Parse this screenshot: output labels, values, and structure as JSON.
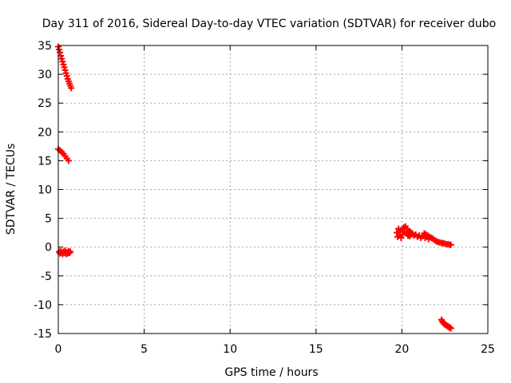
{
  "chart_data": {
    "type": "scatter",
    "title": "Day 311 of 2016, Sidereal Day-to-day VTEC variation (SDTVAR) for receiver dubo",
    "xlabel": "GPS time / hours",
    "ylabel": "SDTVAR / TECUs",
    "xlim": [
      0,
      25
    ],
    "ylim": [
      -15,
      35
    ],
    "x_ticks": [
      0,
      5,
      10,
      15,
      20,
      25
    ],
    "y_ticks": [
      -15,
      -10,
      -5,
      0,
      5,
      10,
      15,
      20,
      25,
      30,
      35
    ],
    "grid": true,
    "marker": "plus",
    "color": "#ff0000",
    "series": [
      {
        "points": [
          [
            0.0,
            34.8
          ],
          [
            0.05,
            34.3
          ],
          [
            0.1,
            33.8
          ],
          [
            0.15,
            33.2
          ],
          [
            0.2,
            32.7
          ],
          [
            0.25,
            32.2
          ],
          [
            0.3,
            31.7
          ],
          [
            0.35,
            31.2
          ],
          [
            0.4,
            30.7
          ],
          [
            0.45,
            30.2
          ],
          [
            0.5,
            29.7
          ],
          [
            0.55,
            29.2
          ],
          [
            0.6,
            28.8
          ],
          [
            0.65,
            28.4
          ],
          [
            0.7,
            28.0
          ],
          [
            0.75,
            27.6
          ],
          [
            0.0,
            17.0
          ],
          [
            0.1,
            16.8
          ],
          [
            0.2,
            16.5
          ],
          [
            0.3,
            16.2
          ],
          [
            0.4,
            15.8
          ],
          [
            0.5,
            15.4
          ],
          [
            0.6,
            15.0
          ],
          [
            0.05,
            -0.8
          ],
          [
            0.1,
            -1.1
          ],
          [
            0.15,
            -0.7
          ],
          [
            0.2,
            -1.0
          ],
          [
            0.25,
            -1.2
          ],
          [
            0.3,
            -0.8
          ],
          [
            0.35,
            -1.0
          ],
          [
            0.4,
            -0.6
          ],
          [
            0.45,
            -1.2
          ],
          [
            0.5,
            -0.9
          ],
          [
            0.55,
            -1.1
          ],
          [
            0.6,
            -0.7
          ],
          [
            0.65,
            -1.0
          ],
          [
            0.7,
            -0.8
          ],
          [
            19.7,
            2.5
          ],
          [
            19.75,
            1.8
          ],
          [
            19.8,
            3.2
          ],
          [
            19.85,
            2.0
          ],
          [
            19.9,
            2.8
          ],
          [
            19.95,
            1.6
          ],
          [
            20.0,
            3.0
          ],
          [
            20.05,
            2.2
          ],
          [
            20.1,
            3.4
          ],
          [
            20.15,
            2.6
          ],
          [
            20.2,
            3.6
          ],
          [
            20.25,
            2.4
          ],
          [
            20.3,
            3.2
          ],
          [
            20.35,
            2.0
          ],
          [
            20.4,
            2.8
          ],
          [
            20.45,
            1.9
          ],
          [
            20.5,
            2.6
          ],
          [
            20.55,
            2.2
          ],
          [
            20.6,
            2.4
          ],
          [
            20.7,
            2.0
          ],
          [
            20.8,
            2.2
          ],
          [
            20.9,
            1.8
          ],
          [
            21.0,
            2.0
          ],
          [
            21.1,
            1.6
          ],
          [
            21.2,
            1.9
          ],
          [
            21.3,
            2.4
          ],
          [
            21.35,
            1.6
          ],
          [
            21.4,
            2.2
          ],
          [
            21.5,
            2.0
          ],
          [
            21.55,
            1.4
          ],
          [
            21.6,
            1.8
          ],
          [
            21.7,
            1.6
          ],
          [
            21.8,
            1.5
          ],
          [
            21.9,
            1.2
          ],
          [
            22.0,
            1.0
          ],
          [
            22.1,
            0.9
          ],
          [
            22.2,
            0.8
          ],
          [
            22.3,
            0.7
          ],
          [
            22.4,
            0.7
          ],
          [
            22.5,
            0.6
          ],
          [
            22.6,
            0.5
          ],
          [
            22.7,
            0.5
          ],
          [
            22.8,
            0.4
          ],
          [
            22.85,
            0.4
          ],
          [
            22.3,
            -12.6
          ],
          [
            22.35,
            -12.9
          ],
          [
            22.4,
            -13.1
          ],
          [
            22.45,
            -13.3
          ],
          [
            22.5,
            -13.4
          ],
          [
            22.55,
            -13.5
          ],
          [
            22.6,
            -13.6
          ],
          [
            22.65,
            -13.7
          ],
          [
            22.7,
            -13.8
          ],
          [
            22.75,
            -13.9
          ],
          [
            22.8,
            -14.0
          ],
          [
            22.85,
            -14.1
          ]
        ]
      }
    ]
  }
}
